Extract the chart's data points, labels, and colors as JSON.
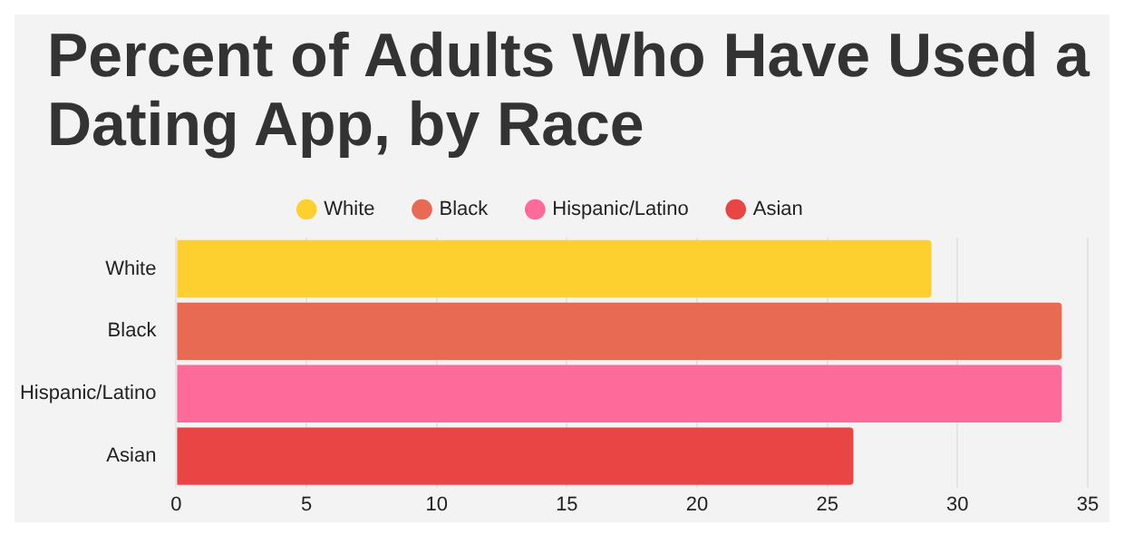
{
  "chart_data": {
    "type": "bar",
    "orientation": "horizontal",
    "title": "Percent of Adults Who Have Used a Dating App, by Race",
    "categories": [
      "White",
      "Black",
      "Hispanic/Latino",
      "Asian"
    ],
    "series": [
      {
        "name": "White",
        "color": "#fdd02f",
        "values": [
          29,
          null,
          null,
          null
        ]
      },
      {
        "name": "Black",
        "color": "#e86a53",
        "values": [
          null,
          34,
          null,
          null
        ]
      },
      {
        "name": "Hispanic/Latino",
        "color": "#fe6b9a",
        "values": [
          null,
          null,
          34,
          null
        ]
      },
      {
        "name": "Asian",
        "color": "#e94545",
        "values": [
          null,
          null,
          null,
          26
        ]
      }
    ],
    "xlim": [
      0,
      35
    ],
    "xticks": [
      0,
      5,
      10,
      15,
      20,
      25,
      30,
      35
    ],
    "grid": "x",
    "legend": "top"
  }
}
